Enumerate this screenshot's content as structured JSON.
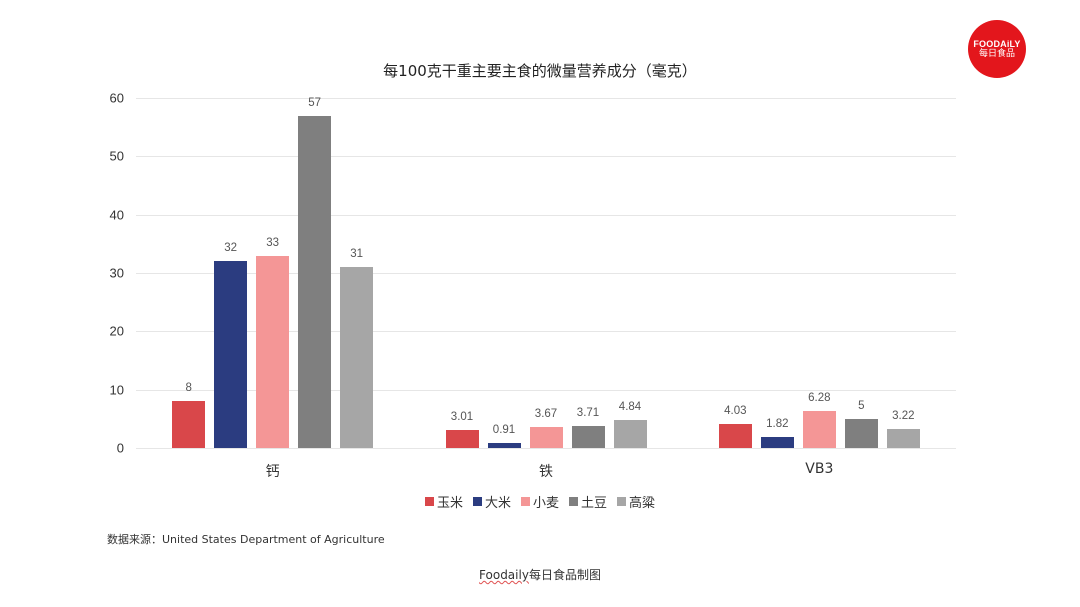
{
  "logo": {
    "line1": "FOODAiLY",
    "line2": "每日食品"
  },
  "source_note": "数据来源：United States Department of Agriculture",
  "credit": {
    "brand": "Foodaily",
    "rest": "每日食品制图"
  },
  "chart_data": {
    "type": "bar",
    "title": "每100克干重主要主食的微量营养成分（毫克）",
    "xlabel": "",
    "ylabel": "",
    "ylim": [
      0,
      60
    ],
    "yticks": [
      0,
      10,
      20,
      30,
      40,
      50,
      60
    ],
    "grid": true,
    "legend_position": "bottom",
    "categories": [
      "钙",
      "铁",
      "VB3"
    ],
    "series": [
      {
        "name": "玉米",
        "color": "#D9474A",
        "values": [
          8,
          3.01,
          4.03
        ],
        "labels": [
          "8",
          "3.01",
          "4.03"
        ]
      },
      {
        "name": "大米",
        "color": "#2B3C80",
        "values": [
          32,
          0.91,
          1.82
        ],
        "labels": [
          "32",
          "0.91",
          "1.82"
        ]
      },
      {
        "name": "小麦",
        "color": "#F49696",
        "values": [
          33,
          3.67,
          6.28
        ],
        "labels": [
          "33",
          "3.67",
          "6.28"
        ]
      },
      {
        "name": "土豆",
        "color": "#7F7F7F",
        "values": [
          57,
          3.71,
          5
        ],
        "labels": [
          "57",
          "3.71",
          "5"
        ]
      },
      {
        "name": "高粱",
        "color": "#A6A6A6",
        "values": [
          31,
          4.84,
          3.22
        ],
        "labels": [
          "31",
          "4.84",
          "3.22"
        ]
      }
    ]
  }
}
